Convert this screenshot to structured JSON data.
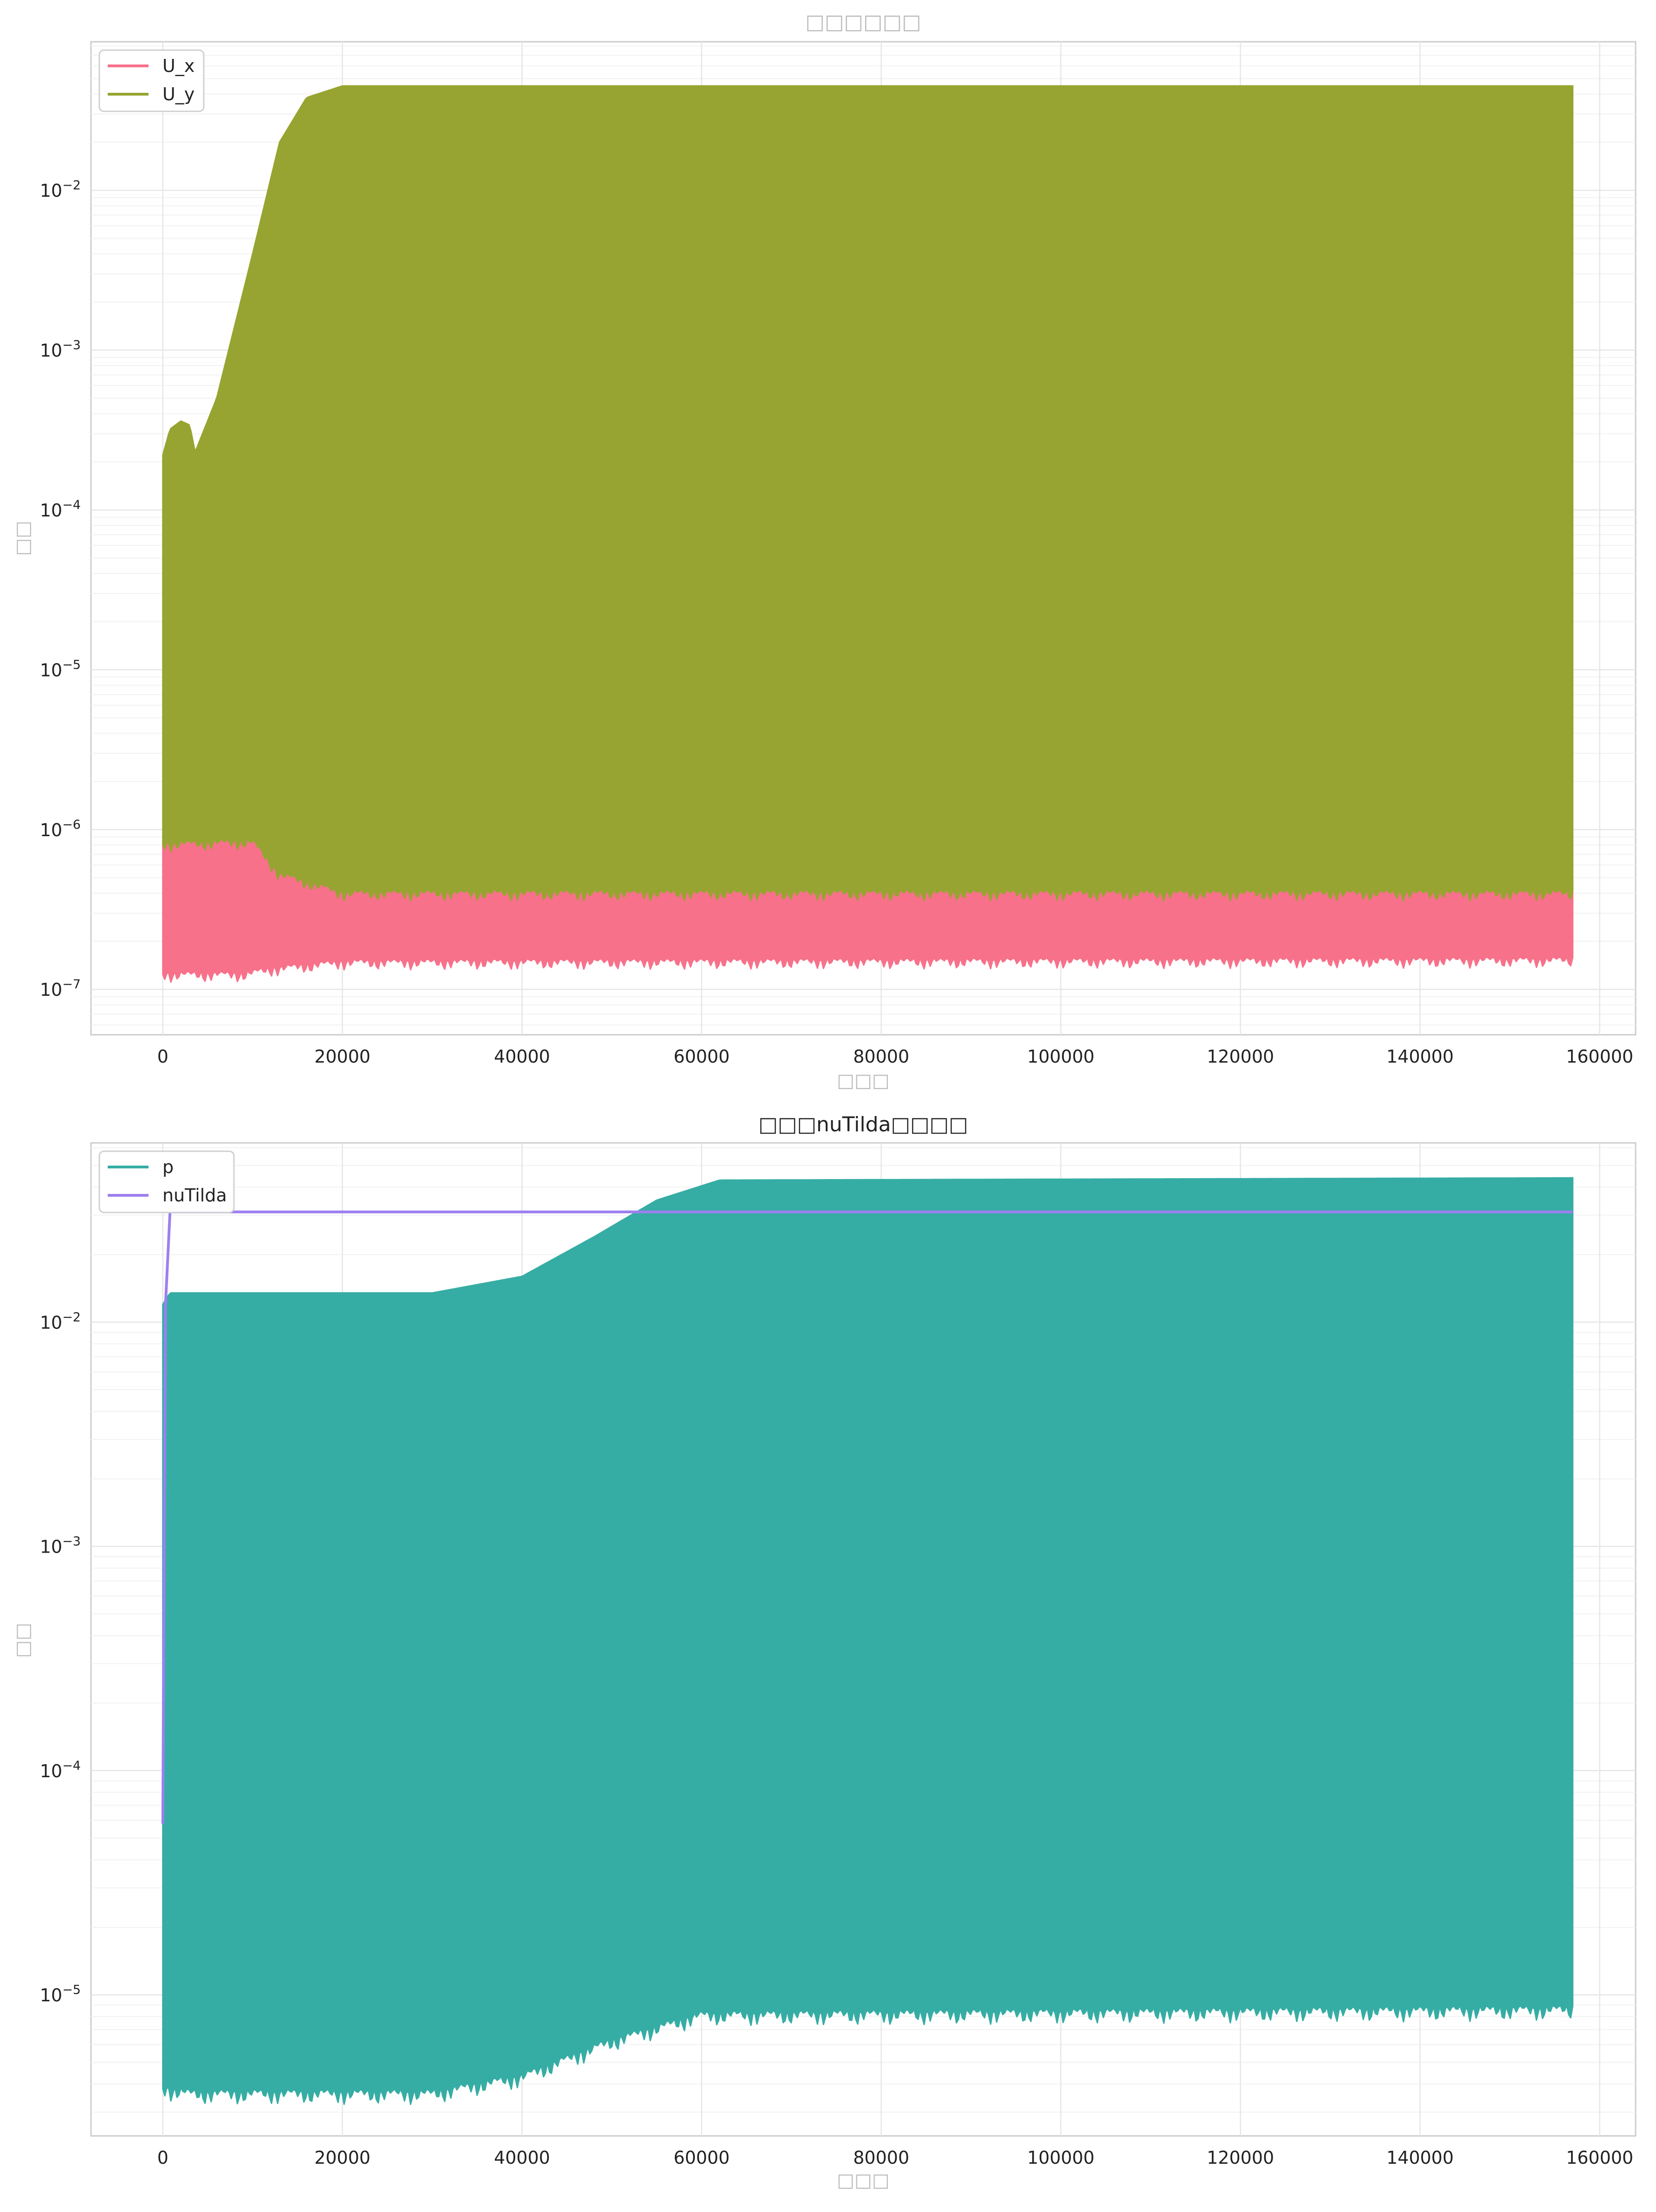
{
  "chart_data": [
    {
      "type": "line",
      "title": "□□□□□□",
      "xlabel": "□□□",
      "ylabel": "□□",
      "yscale": "log",
      "grid": true,
      "legend_position": "upper-left",
      "xlim": [
        -8000,
        164000
      ],
      "ylim": [
        5.2e-08,
        0.085
      ],
      "xticks": [
        0,
        20000,
        40000,
        60000,
        80000,
        100000,
        120000,
        140000,
        160000
      ],
      "yticks": [
        1e-07,
        1e-06,
        1e-05,
        0.0001,
        0.001,
        0.01
      ],
      "ytick_labels": [
        {
          "base": "10",
          "exp": "−7"
        },
        {
          "base": "10",
          "exp": "−6"
        },
        {
          "base": "10",
          "exp": "−5"
        },
        {
          "base": "10",
          "exp": "−4"
        },
        {
          "base": "10",
          "exp": "−3"
        },
        {
          "base": "10",
          "exp": "−2"
        }
      ],
      "series": [
        {
          "name": "U_x",
          "color": "#f7718a",
          "min_envelope": [
            [
              0,
              1.3e-07
            ],
            [
              9000,
              1.3e-07
            ],
            [
              12000,
              1.4e-07
            ],
            [
              20000,
              1.55e-07
            ],
            [
              157000,
              1.6e-07
            ]
          ],
          "max_envelope": [
            [
              0,
              8.5e-07
            ],
            [
              10000,
              9e-07
            ],
            [
              13000,
              6e-07
            ],
            [
              20000,
              4.6e-07
            ],
            [
              157000,
              4.6e-07
            ]
          ]
        },
        {
          "name": "U_y",
          "color": "#97a431",
          "min_envelope": [
            [
              0,
              8.5e-07
            ],
            [
              10000,
              8.8e-07
            ],
            [
              13000,
              5.5e-07
            ],
            [
              20000,
              4.2e-07
            ],
            [
              157000,
              4.2e-07
            ]
          ],
          "max_envelope": [
            [
              0,
              0.00022
            ],
            [
              800,
              0.00032
            ],
            [
              2000,
              0.00036
            ],
            [
              3000,
              0.00034
            ],
            [
              3600,
              0.00023
            ],
            [
              6000,
              0.0005
            ],
            [
              10000,
              0.004
            ],
            [
              13000,
              0.02
            ],
            [
              16000,
              0.038
            ],
            [
              20000,
              0.045
            ],
            [
              157000,
              0.045
            ]
          ]
        }
      ]
    },
    {
      "type": "line",
      "title": "□□□nuTilda□□□□",
      "xlabel": "□□□",
      "ylabel": "□□",
      "yscale": "log",
      "grid": true,
      "legend_position": "upper-left",
      "xlim": [
        -8000,
        164000
      ],
      "ylim": [
        2.35e-06,
        0.063
      ],
      "xticks": [
        0,
        20000,
        40000,
        60000,
        80000,
        100000,
        120000,
        140000,
        160000
      ],
      "yticks": [
        1e-05,
        0.0001,
        0.001,
        0.01
      ],
      "ytick_labels": [
        {
          "base": "10",
          "exp": "−5"
        },
        {
          "base": "10",
          "exp": "−4"
        },
        {
          "base": "10",
          "exp": "−3"
        },
        {
          "base": "10",
          "exp": "−2"
        }
      ],
      "series": [
        {
          "name": "p",
          "color": "#36ada4",
          "min_envelope": [
            [
              0,
              4e-06
            ],
            [
              3000,
              3.8e-06
            ],
            [
              30000,
              3.8e-06
            ],
            [
              40000,
              4.5e-06
            ],
            [
              50000,
              6.5e-06
            ],
            [
              60000,
              8.5e-06
            ],
            [
              157000,
              9e-06
            ]
          ],
          "max_envelope": [
            [
              0,
              0.012
            ],
            [
              800,
              0.0135
            ],
            [
              30000,
              0.0135
            ],
            [
              40000,
              0.016
            ],
            [
              48000,
              0.024
            ],
            [
              55000,
              0.035
            ],
            [
              62000,
              0.043
            ],
            [
              157000,
              0.044
            ]
          ]
        },
        {
          "name": "nuTilda",
          "color": "#9d7ff0",
          "points": [
            [
              0,
              5.8e-05
            ],
            [
              300,
              0.012
            ],
            [
              800,
              0.031
            ],
            [
              5000,
              0.031
            ],
            [
              157000,
              0.031
            ]
          ]
        }
      ]
    }
  ]
}
